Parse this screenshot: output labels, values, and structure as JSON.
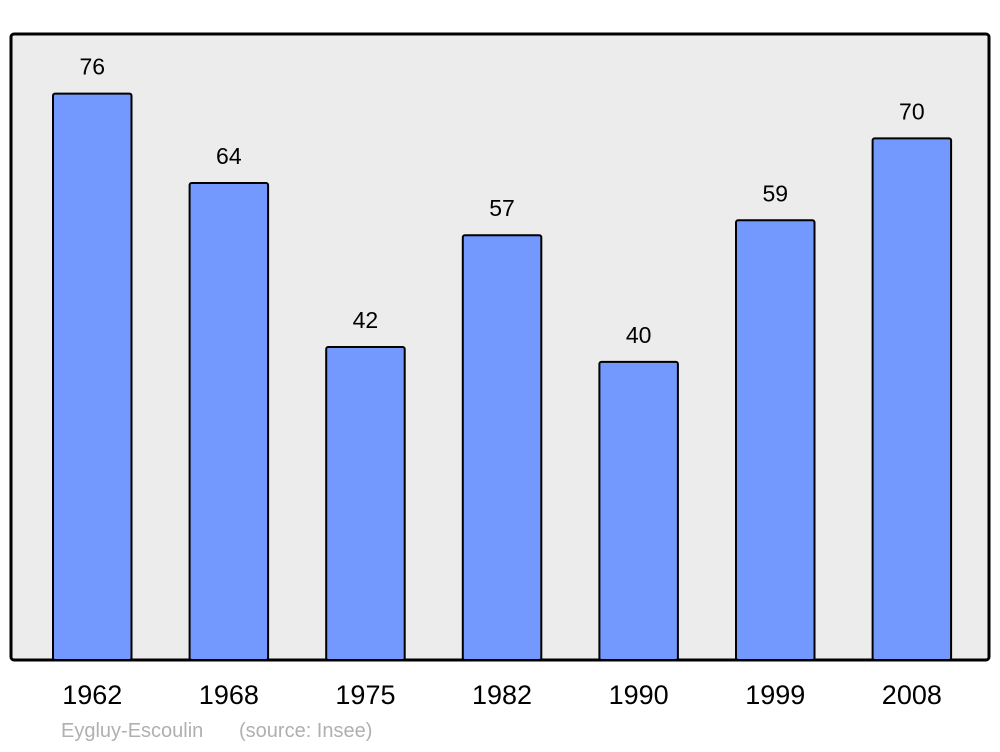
{
  "chart_data": {
    "type": "bar",
    "categories": [
      "1962",
      "1968",
      "1975",
      "1982",
      "1990",
      "1999",
      "2008"
    ],
    "values": [
      76,
      64,
      42,
      57,
      40,
      59,
      70
    ],
    "title": "",
    "xlabel": "",
    "ylabel": "",
    "ylim": [
      0,
      84
    ],
    "grid": false,
    "data_labels": true,
    "colors": {
      "bar": "#7399ff",
      "plot_background": "#ececec",
      "border": "#000000",
      "caption": "#b0b0b0"
    }
  },
  "caption": {
    "place": "Eygluy-Escoulin",
    "source": "(source: Insee)"
  }
}
